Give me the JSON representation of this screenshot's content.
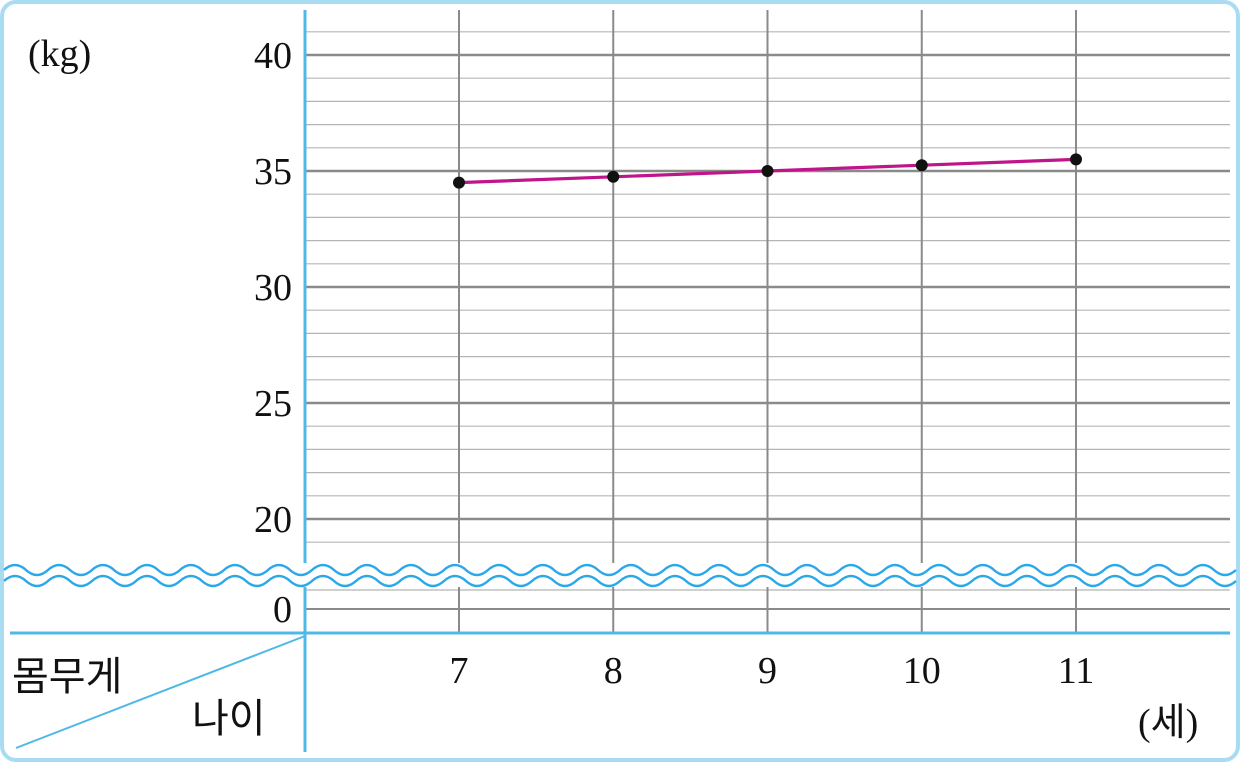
{
  "chart_data": {
    "type": "line",
    "title": "",
    "ylabel": "(kg)",
    "xlabel": "(세)",
    "header_row_label": "몸무게",
    "header_col_label": "나이",
    "x": [
      7,
      8,
      9,
      10,
      11
    ],
    "x_tick_labels": [
      "7",
      "8",
      "9",
      "10",
      "11"
    ],
    "y_tick_labels": [
      "0",
      "20",
      "25",
      "30",
      "35",
      "40"
    ],
    "series": [
      {
        "values": [
          34.5,
          34.75,
          35,
          35.25,
          35.5
        ]
      }
    ],
    "ylim": [
      19,
      41
    ],
    "axis_break": true,
    "grid": true
  },
  "colors": {
    "line": "#c0148a",
    "marker": "#111111",
    "axis": "#4fb8e6",
    "grid_major": "#8a8a8a",
    "grid_minor": "#b5b5b5",
    "wave": "#2aa8e8"
  }
}
